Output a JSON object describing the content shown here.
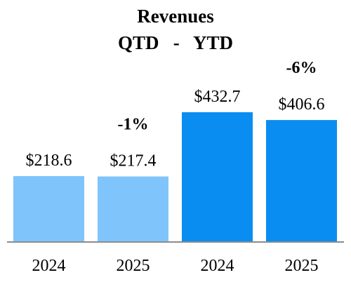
{
  "chart_data": {
    "type": "bar",
    "title": "Revenues",
    "subtitle": "QTD   -   YTD",
    "categories": [
      "2024",
      "2025",
      "2024",
      "2025"
    ],
    "values": [
      218.6,
      217.4,
      432.7,
      406.6
    ],
    "value_labels": [
      "$218.6",
      "$217.4",
      "$432.7",
      "$406.6"
    ],
    "groups": [
      {
        "name": "QTD",
        "bars": [
          0,
          1
        ],
        "change": "-1%",
        "color": "#7fc4fb"
      },
      {
        "name": "YTD",
        "bars": [
          2,
          3
        ],
        "change": "-6%",
        "color": "#0a8df0"
      }
    ],
    "ylim": [
      0,
      500
    ],
    "grid": false,
    "xlabel": "",
    "ylabel": ""
  }
}
